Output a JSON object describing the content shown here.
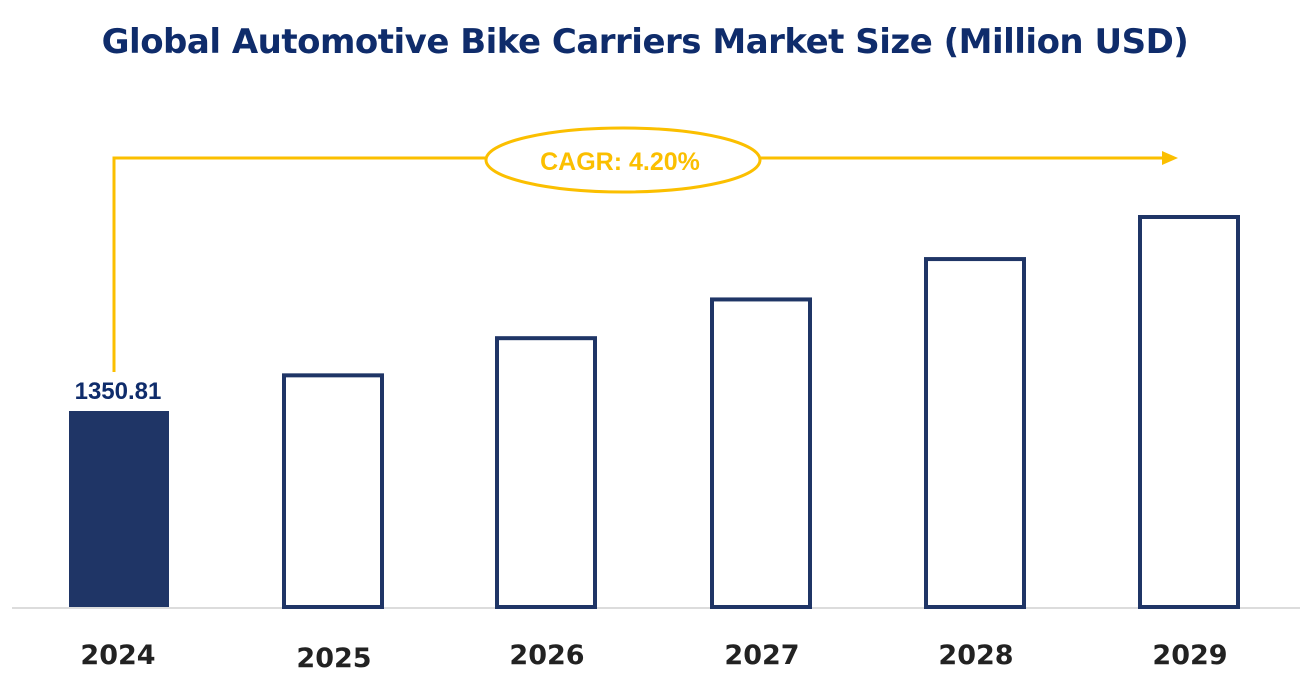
{
  "chart_data": {
    "type": "bar",
    "title": "Global Automotive Bike Carriers Market Size (Million USD)",
    "categories": [
      "2024",
      "2025",
      "2026",
      "2027",
      "2028",
      "2029"
    ],
    "values": [
      1350.81,
      1407.5,
      1466.6,
      1528.2,
      1592.4,
      1659.3
    ],
    "data_labels": [
      "1350.81",
      "",
      "",
      "",
      "",
      ""
    ],
    "annotation": "CAGR: 4.20%",
    "xlabel": "",
    "ylabel": "",
    "grid": false,
    "colors": {
      "highlight_fill": "#1f3566",
      "bar_outline": "#1f3566",
      "annotation": "#fbbf00",
      "title": "#0f2c6b",
      "axis": "#d0d0d0"
    }
  }
}
